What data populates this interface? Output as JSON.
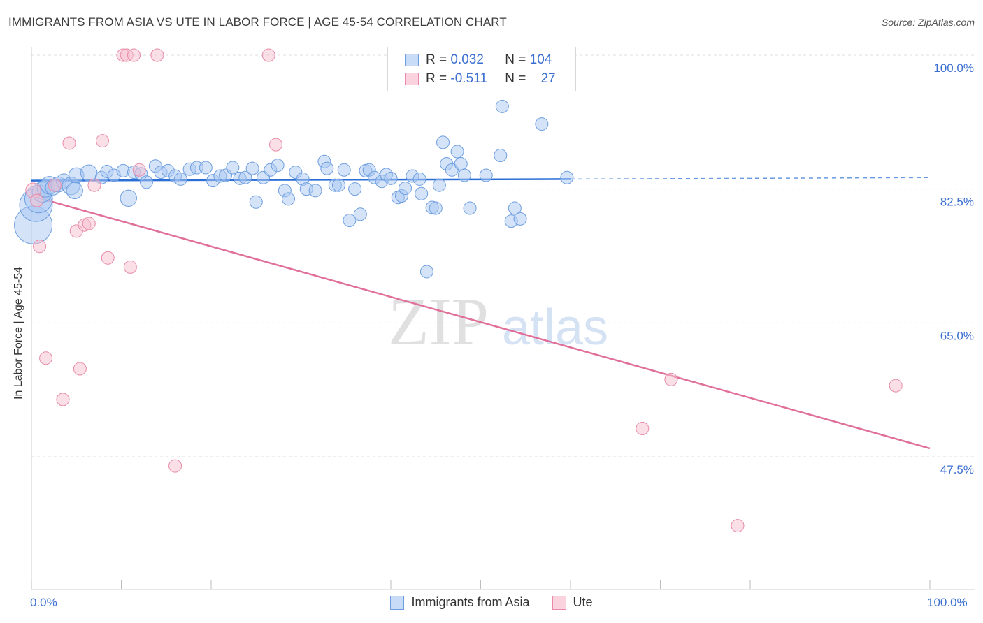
{
  "header": {
    "title": "IMMIGRANTS FROM ASIA VS UTE IN LABOR FORCE | AGE 45-54 CORRELATION CHART",
    "source": "Source: ZipAtlas.com"
  },
  "legend": {
    "rows": [
      {
        "r_label": "R =",
        "r_value": "0.032",
        "n_label": "N =",
        "n_value": "104"
      },
      {
        "r_label": "R =",
        "r_value": "-0.511",
        "n_label": "N =",
        "n_value": "27"
      }
    ]
  },
  "bottom_legend": {
    "asia": "Immigrants from Asia",
    "ute": "Ute"
  },
  "watermark": {
    "zip": "ZIP",
    "atlas": "atlas"
  },
  "colors": {
    "asia_fill": "#a9c8f2",
    "asia_stroke": "#6d9ee0",
    "asia_line": "#2b6fd6",
    "ute_fill": "#f7bfd0",
    "ute_stroke": "#e88aa8",
    "ute_line": "#e0709a",
    "tick_text": "#3a6fd0",
    "grid": "#dcdcdc"
  },
  "chart_data": {
    "type": "scatter",
    "title": "IMMIGRANTS FROM ASIA VS UTE IN LABOR FORCE | AGE 45-54 CORRELATION CHART",
    "xlabel": "",
    "ylabel": "In Labor Force | Age 45-54",
    "xlim": [
      0,
      100
    ],
    "ylim": [
      30,
      102
    ],
    "x_tick_labels": [
      "0.0%",
      "100.0%"
    ],
    "y_ticks": [
      {
        "value": 100.0,
        "label": "100.0%"
      },
      {
        "value": 82.5,
        "label": "82.5%"
      },
      {
        "value": 65.0,
        "label": "65.0%"
      },
      {
        "value": 47.5,
        "label": "47.5%"
      }
    ],
    "series": [
      {
        "name": "Immigrants from Asia",
        "r": 0.032,
        "n": 104,
        "trend": {
          "x0": 0,
          "y0": 83.6,
          "x1": 60,
          "y1": 83.8,
          "dashed_to_x": 100,
          "dashed_to_y": 84.0
        },
        "points": [
          [
            0.2,
            77.8,
            3
          ],
          [
            0.5,
            80.4,
            2.6
          ],
          [
            0.8,
            81.2,
            2.2
          ],
          [
            1.2,
            82.1,
            1.6
          ],
          [
            1.6,
            82.6,
            1.4
          ],
          [
            2.0,
            83.0,
            1.4
          ],
          [
            2.4,
            82.7,
            1.2
          ],
          [
            3.0,
            83.1,
            1.2
          ],
          [
            3.6,
            83.5,
            1.2
          ],
          [
            4.4,
            82.9,
            1.4
          ],
          [
            4.8,
            82.3,
            1.3
          ],
          [
            5.0,
            84.3,
            1.2
          ],
          [
            6.4,
            84.6,
            1.3
          ],
          [
            7.8,
            84.0,
            1.0
          ],
          [
            8.4,
            84.8,
            1.0
          ],
          [
            9.2,
            84.3,
            1.0
          ],
          [
            10.2,
            84.9,
            1.0
          ],
          [
            10.8,
            81.3,
            1.3
          ],
          [
            11.4,
            84.7,
            1.0
          ],
          [
            12.2,
            84.5,
            1.0
          ],
          [
            12.8,
            83.4,
            1.0
          ],
          [
            13.8,
            85.5,
            1.0
          ],
          [
            14.4,
            84.7,
            1.0
          ],
          [
            15.2,
            84.9,
            1.0
          ],
          [
            16.0,
            84.2,
            1.0
          ],
          [
            16.6,
            83.8,
            1.0
          ],
          [
            17.6,
            85.1,
            1.0
          ],
          [
            18.4,
            85.3,
            1.0
          ],
          [
            19.4,
            85.3,
            1.0
          ],
          [
            20.2,
            83.6,
            1.0
          ],
          [
            21.0,
            84.2,
            1.0
          ],
          [
            21.6,
            84.3,
            1.0
          ],
          [
            22.4,
            85.3,
            1.0
          ],
          [
            23.2,
            83.9,
            1.0
          ],
          [
            23.8,
            84.0,
            1.0
          ],
          [
            24.6,
            85.2,
            1.0
          ],
          [
            25.0,
            80.8,
            1.0
          ],
          [
            25.8,
            84.0,
            1.0
          ],
          [
            26.6,
            85.0,
            1.0
          ],
          [
            27.4,
            85.6,
            1.0
          ],
          [
            28.2,
            82.3,
            1.0
          ],
          [
            28.6,
            81.2,
            1.0
          ],
          [
            29.4,
            84.7,
            1.0
          ],
          [
            30.2,
            83.8,
            1.0
          ],
          [
            30.6,
            82.5,
            1.0
          ],
          [
            31.6,
            82.3,
            1.0
          ],
          [
            32.6,
            86.1,
            1.0
          ],
          [
            32.9,
            85.2,
            1.0
          ],
          [
            33.8,
            83.0,
            1.0
          ],
          [
            34.2,
            83.0,
            1.0
          ],
          [
            34.8,
            85.0,
            1.0
          ],
          [
            35.4,
            78.4,
            1.0
          ],
          [
            36.0,
            82.5,
            1.0
          ],
          [
            36.6,
            79.2,
            1.0
          ],
          [
            37.2,
            84.9,
            1.0
          ],
          [
            37.6,
            85.0,
            1.0
          ],
          [
            38.2,
            84.0,
            1.0
          ],
          [
            39.0,
            83.5,
            1.0
          ],
          [
            39.5,
            84.4,
            1.0
          ],
          [
            40.0,
            83.9,
            1.0
          ],
          [
            40.8,
            81.4,
            1.0
          ],
          [
            41.2,
            81.6,
            1.0
          ],
          [
            41.6,
            82.6,
            1.0
          ],
          [
            42.4,
            84.2,
            1.0
          ],
          [
            43.2,
            83.8,
            1.0
          ],
          [
            43.4,
            81.9,
            1.0
          ],
          [
            44.0,
            71.7,
            1.0
          ],
          [
            44.6,
            80.1,
            1.0
          ],
          [
            45.0,
            80.0,
            1.0
          ],
          [
            45.4,
            83.0,
            1.0
          ],
          [
            45.8,
            88.6,
            1.0
          ],
          [
            46.2,
            85.8,
            1.0
          ],
          [
            46.8,
            85.0,
            1.0
          ],
          [
            47.4,
            87.4,
            1.0
          ],
          [
            47.8,
            85.8,
            1.0
          ],
          [
            48.2,
            84.3,
            1.0
          ],
          [
            48.8,
            80.0,
            1.0
          ],
          [
            50.6,
            84.3,
            1.0
          ],
          [
            52.2,
            86.9,
            1.0
          ],
          [
            52.4,
            93.3,
            1.0
          ],
          [
            53.4,
            78.3,
            1.0
          ],
          [
            53.8,
            80.0,
            1.0
          ],
          [
            54.4,
            78.6,
            1.0
          ],
          [
            56.8,
            91.0,
            1.0
          ],
          [
            59.6,
            84.0,
            1.0
          ]
        ]
      },
      {
        "name": "Ute",
        "r": -0.511,
        "n": 27,
        "trend": {
          "x0": 0,
          "y0": 81.6,
          "x1": 100,
          "y1": 48.6
        },
        "points": [
          [
            0.2,
            82.3,
            1.2
          ],
          [
            0.6,
            81.0,
            1.0
          ],
          [
            0.9,
            75.0,
            1.0
          ],
          [
            1.6,
            60.4,
            1.0
          ],
          [
            2.6,
            83.0,
            1.0
          ],
          [
            3.5,
            55.0,
            1.0
          ],
          [
            4.2,
            88.5,
            1.0
          ],
          [
            5.0,
            77.0,
            1.0
          ],
          [
            5.4,
            59.0,
            1.0
          ],
          [
            5.9,
            77.8,
            1.0
          ],
          [
            6.4,
            78.0,
            1.0
          ],
          [
            7.0,
            83.0,
            1.0
          ],
          [
            7.9,
            88.8,
            1.0
          ],
          [
            8.5,
            73.5,
            1.0
          ],
          [
            10.2,
            100.0,
            1.0
          ],
          [
            10.6,
            100.0,
            1.0
          ],
          [
            11.0,
            72.3,
            1.0
          ],
          [
            11.4,
            100.0,
            1.0
          ],
          [
            12.0,
            85.0,
            1.0
          ],
          [
            14.0,
            100.0,
            1.0
          ],
          [
            16.0,
            46.3,
            1.0
          ],
          [
            26.4,
            100.0,
            1.0
          ],
          [
            27.2,
            88.3,
            1.0
          ],
          [
            68.0,
            51.2,
            1.0
          ],
          [
            71.2,
            57.6,
            1.0
          ],
          [
            78.6,
            38.5,
            1.0
          ],
          [
            96.2,
            56.8,
            1.0
          ]
        ]
      }
    ]
  }
}
